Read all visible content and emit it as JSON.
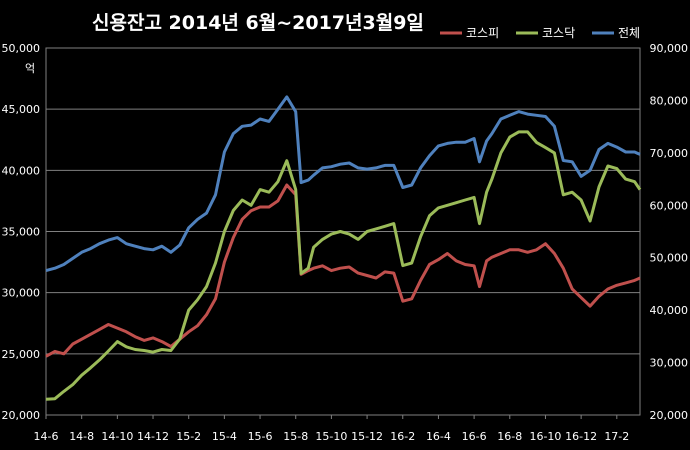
{
  "chart_data": {
    "type": "line",
    "title": "신용잔고 2014년 6월~2017년3월9일",
    "left_unit": "억",
    "left_axis": {
      "min": 20000,
      "max": 50000,
      "ticks": [
        "20,000",
        "25,000",
        "30,000",
        "35,000",
        "40,000",
        "45,000",
        "50,000"
      ]
    },
    "right_axis": {
      "min": 20000,
      "max": 90000,
      "ticks": [
        "20,000",
        "30,000",
        "40,000",
        "50,000",
        "60,000",
        "70,000",
        "80,000",
        "90,000"
      ]
    },
    "x_range": [
      0,
      33.3
    ],
    "x_labels": [
      {
        "label": "14-6",
        "pos": 0
      },
      {
        "label": "14-8",
        "pos": 2
      },
      {
        "label": "14-10",
        "pos": 4
      },
      {
        "label": "14-12",
        "pos": 6
      },
      {
        "label": "15-2",
        "pos": 8
      },
      {
        "label": "15-4",
        "pos": 10
      },
      {
        "label": "15-6",
        "pos": 12
      },
      {
        "label": "15-8",
        "pos": 14
      },
      {
        "label": "15-10",
        "pos": 16
      },
      {
        "label": "15-12",
        "pos": 18
      },
      {
        "label": "16-2",
        "pos": 20
      },
      {
        "label": "16-4",
        "pos": 22
      },
      {
        "label": "16-6",
        "pos": 24
      },
      {
        "label": "16-8",
        "pos": 26
      },
      {
        "label": "16-10",
        "pos": 28
      },
      {
        "label": "16-12",
        "pos": 30
      },
      {
        "label": "17-2",
        "pos": 32
      }
    ],
    "grid": true,
    "legend_position": "top-right",
    "series": [
      {
        "name": "코스피",
        "color": "#c0504d",
        "axis": "left",
        "points": [
          [
            0,
            24800
          ],
          [
            0.5,
            25200
          ],
          [
            1,
            25000
          ],
          [
            1.5,
            25800
          ],
          [
            2,
            26200
          ],
          [
            2.5,
            26600
          ],
          [
            3,
            27000
          ],
          [
            3.5,
            27400
          ],
          [
            4,
            27100
          ],
          [
            4.5,
            26800
          ],
          [
            5,
            26400
          ],
          [
            5.5,
            26100
          ],
          [
            6,
            26300
          ],
          [
            6.5,
            26000
          ],
          [
            7,
            25600
          ],
          [
            7.5,
            26200
          ],
          [
            8,
            26800
          ],
          [
            8.5,
            27300
          ],
          [
            9,
            28200
          ],
          [
            9.5,
            29500
          ],
          [
            10,
            32500
          ],
          [
            10.5,
            34500
          ],
          [
            11,
            36000
          ],
          [
            11.5,
            36700
          ],
          [
            12,
            37000
          ],
          [
            12.5,
            37000
          ],
          [
            13,
            37500
          ],
          [
            13.5,
            38800
          ],
          [
            14,
            38000
          ],
          [
            14.3,
            31500
          ],
          [
            14.7,
            31800
          ],
          [
            15,
            32000
          ],
          [
            15.5,
            32200
          ],
          [
            16,
            31800
          ],
          [
            16.5,
            32000
          ],
          [
            17,
            32100
          ],
          [
            17.5,
            31600
          ],
          [
            18,
            31400
          ],
          [
            18.5,
            31200
          ],
          [
            19,
            31700
          ],
          [
            19.5,
            31600
          ],
          [
            20,
            29300
          ],
          [
            20.5,
            29500
          ],
          [
            21,
            31000
          ],
          [
            21.5,
            32300
          ],
          [
            22,
            32700
          ],
          [
            22.5,
            33200
          ],
          [
            23,
            32600
          ],
          [
            23.5,
            32300
          ],
          [
            24,
            32200
          ],
          [
            24.3,
            30500
          ],
          [
            24.7,
            32600
          ],
          [
            25,
            32900
          ],
          [
            25.5,
            33200
          ],
          [
            26,
            33500
          ],
          [
            26.5,
            33500
          ],
          [
            27,
            33300
          ],
          [
            27.5,
            33500
          ],
          [
            28,
            34000
          ],
          [
            28.5,
            33200
          ],
          [
            29,
            32000
          ],
          [
            29.5,
            30300
          ],
          [
            30,
            29600
          ],
          [
            30.5,
            28900
          ],
          [
            31,
            29700
          ],
          [
            31.5,
            30300
          ],
          [
            32,
            30600
          ],
          [
            32.5,
            30800
          ],
          [
            33,
            31000
          ],
          [
            33.3,
            31200
          ]
        ]
      },
      {
        "name": "코스닥",
        "color": "#9bbb59",
        "axis": "right",
        "points": [
          [
            0,
            23000
          ],
          [
            0.5,
            23100
          ],
          [
            1,
            24500
          ],
          [
            1.5,
            25800
          ],
          [
            2,
            27600
          ],
          [
            2.5,
            29000
          ],
          [
            3,
            30500
          ],
          [
            3.5,
            32200
          ],
          [
            4,
            34000
          ],
          [
            4.5,
            33000
          ],
          [
            5,
            32500
          ],
          [
            5.5,
            32300
          ],
          [
            6,
            32000
          ],
          [
            6.5,
            32500
          ],
          [
            7,
            32300
          ],
          [
            7.5,
            34500
          ],
          [
            8,
            40000
          ],
          [
            8.5,
            42000
          ],
          [
            9,
            44500
          ],
          [
            9.5,
            49000
          ],
          [
            10,
            55000
          ],
          [
            10.5,
            59000
          ],
          [
            11,
            61000
          ],
          [
            11.5,
            60000
          ],
          [
            12,
            63000
          ],
          [
            12.5,
            62500
          ],
          [
            13,
            64500
          ],
          [
            13.5,
            68500
          ],
          [
            14,
            63000
          ],
          [
            14.3,
            47000
          ],
          [
            14.7,
            48000
          ],
          [
            15,
            52000
          ],
          [
            15.5,
            53500
          ],
          [
            16,
            54500
          ],
          [
            16.5,
            55000
          ],
          [
            17,
            54500
          ],
          [
            17.5,
            53500
          ],
          [
            18,
            55000
          ],
          [
            18.5,
            55500
          ],
          [
            19,
            56000
          ],
          [
            19.5,
            56500
          ],
          [
            20,
            48500
          ],
          [
            20.5,
            49000
          ],
          [
            21,
            54000
          ],
          [
            21.5,
            58000
          ],
          [
            22,
            59500
          ],
          [
            22.5,
            60000
          ],
          [
            23,
            60500
          ],
          [
            23.5,
            61000
          ],
          [
            24,
            61500
          ],
          [
            24.3,
            56500
          ],
          [
            24.7,
            62500
          ],
          [
            25,
            65000
          ],
          [
            25.5,
            70000
          ],
          [
            26,
            73000
          ],
          [
            26.5,
            74000
          ],
          [
            27,
            74000
          ],
          [
            27.5,
            72000
          ],
          [
            28,
            71000
          ],
          [
            28.5,
            70000
          ],
          [
            29,
            62000
          ],
          [
            29.5,
            62500
          ],
          [
            30,
            61000
          ],
          [
            30.5,
            57000
          ],
          [
            31,
            63500
          ],
          [
            31.5,
            67500
          ],
          [
            32,
            67000
          ],
          [
            32.5,
            65000
          ],
          [
            33,
            64500
          ],
          [
            33.3,
            63000
          ]
        ]
      },
      {
        "name": "전체",
        "color": "#4f81bd",
        "axis": "left",
        "points": [
          [
            0,
            31800
          ],
          [
            0.5,
            32000
          ],
          [
            1,
            32300
          ],
          [
            1.5,
            32800
          ],
          [
            2,
            33300
          ],
          [
            2.5,
            33600
          ],
          [
            3,
            34000
          ],
          [
            3.5,
            34300
          ],
          [
            4,
            34500
          ],
          [
            4.5,
            34000
          ],
          [
            5,
            33800
          ],
          [
            5.5,
            33600
          ],
          [
            6,
            33500
          ],
          [
            6.5,
            33800
          ],
          [
            7,
            33300
          ],
          [
            7.5,
            33900
          ],
          [
            8,
            35300
          ],
          [
            8.5,
            36000
          ],
          [
            9,
            36500
          ],
          [
            9.5,
            38000
          ],
          [
            10,
            41500
          ],
          [
            10.5,
            43000
          ],
          [
            11,
            43600
          ],
          [
            11.5,
            43700
          ],
          [
            12,
            44200
          ],
          [
            12.5,
            44000
          ],
          [
            13,
            45000
          ],
          [
            13.5,
            46000
          ],
          [
            14,
            44800
          ],
          [
            14.3,
            39000
          ],
          [
            14.7,
            39200
          ],
          [
            15,
            39600
          ],
          [
            15.5,
            40200
          ],
          [
            16,
            40300
          ],
          [
            16.5,
            40500
          ],
          [
            17,
            40600
          ],
          [
            17.5,
            40200
          ],
          [
            18,
            40100
          ],
          [
            18.5,
            40200
          ],
          [
            19,
            40400
          ],
          [
            19.5,
            40400
          ],
          [
            20,
            38600
          ],
          [
            20.5,
            38800
          ],
          [
            21,
            40200
          ],
          [
            21.5,
            41200
          ],
          [
            22,
            42000
          ],
          [
            22.5,
            42200
          ],
          [
            23,
            42300
          ],
          [
            23.5,
            42300
          ],
          [
            24,
            42600
          ],
          [
            24.3,
            40700
          ],
          [
            24.7,
            42400
          ],
          [
            25,
            43000
          ],
          [
            25.5,
            44200
          ],
          [
            26,
            44500
          ],
          [
            26.5,
            44800
          ],
          [
            27,
            44600
          ],
          [
            27.5,
            44500
          ],
          [
            28,
            44400
          ],
          [
            28.5,
            43600
          ],
          [
            29,
            40800
          ],
          [
            29.5,
            40700
          ],
          [
            30,
            39500
          ],
          [
            30.5,
            40000
          ],
          [
            31,
            41700
          ],
          [
            31.5,
            42200
          ],
          [
            32,
            41900
          ],
          [
            32.5,
            41500
          ],
          [
            33,
            41500
          ],
          [
            33.3,
            41300
          ]
        ]
      }
    ]
  }
}
